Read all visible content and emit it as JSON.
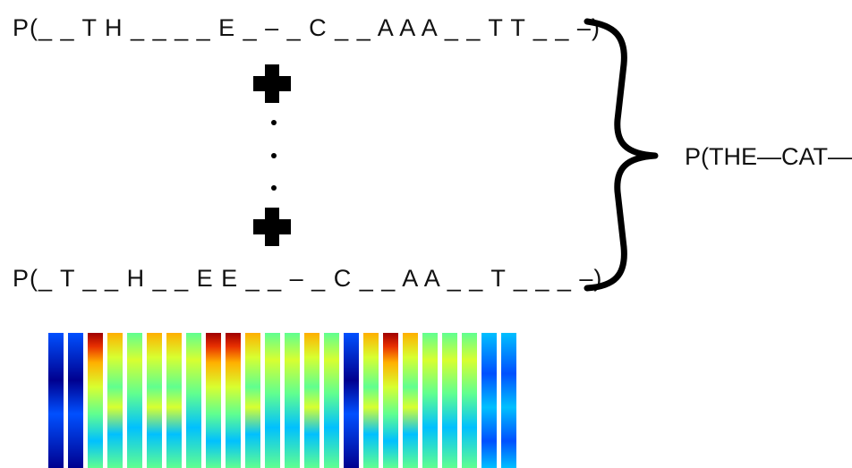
{
  "sequences": {
    "top": "P(_ _ T H _ _ _ _ E _ – _ C _ _ A A A _ _ T T _ _ –)",
    "bottom": "P(_ T _ _ H _ _ E E _ _ – _ C _ _ A A _ _ T _ _ _ –)"
  },
  "result": "P(THE—CAT—)",
  "colors": {
    "text": "#111111",
    "symbol": "#000000",
    "spectrogram": [
      "#00008f",
      "#0050ff",
      "#00c0ff",
      "#60ff90",
      "#d8ff30",
      "#ffb000",
      "#e83000",
      "#a00000"
    ]
  },
  "icons": {
    "plus": "plus-icon",
    "ellipsis": "vertical-ellipsis-icon",
    "brace": "right-curly-brace-icon"
  }
}
